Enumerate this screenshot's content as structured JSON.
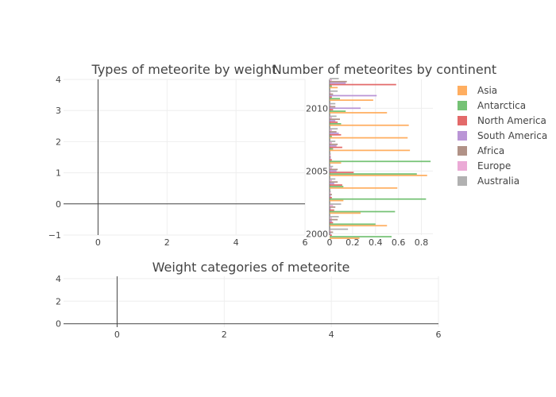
{
  "chart_data": [
    {
      "type": "scatter",
      "title": "Types of meteorite by weight",
      "xlim": [
        -1,
        6
      ],
      "ylim": [
        -1,
        4
      ],
      "x_ticks": [
        0,
        2,
        4,
        6
      ],
      "y_ticks": [
        -1,
        0,
        1,
        2,
        3,
        4
      ],
      "series": []
    },
    {
      "type": "bar",
      "orientation": "horizontal",
      "title": "Number of meteorites by continent",
      "xlim": [
        0,
        0.9
      ],
      "x_ticks": [
        0,
        0.2,
        0.4,
        0.6,
        0.8
      ],
      "x_tick_labels": [
        "0",
        "0.2",
        "0.4",
        "0.6",
        "0.8"
      ],
      "ylim": [
        1999.9,
        2012.3
      ],
      "y_ticks": [
        2000,
        2005,
        2010
      ],
      "legend_position": "right",
      "categories": [
        2000,
        2001,
        2002,
        2003,
        2004,
        2005,
        2006,
        2007,
        2008,
        2009,
        2010,
        2011,
        2012
      ],
      "series": [
        {
          "name": "Asia",
          "color": "#ffa54f",
          "values": [
            0.26,
            0.5,
            0.27,
            0.12,
            0.59,
            0.85,
            0.1,
            0.7,
            0.68,
            0.69,
            0.5,
            0.38,
            0.07
          ]
        },
        {
          "name": "Antarctica",
          "color": "#66bb66",
          "values": [
            0.54,
            0.4,
            0.57,
            0.84,
            0.12,
            0.76,
            0.88,
            0.03,
            0.02,
            0.1,
            0.14,
            0.09,
            0.02
          ]
        },
        {
          "name": "North America",
          "color": "#e05a5a",
          "values": [
            0.02,
            0.03,
            0.04,
            0.02,
            0.11,
            0.21,
            0.02,
            0.11,
            0.1,
            0.07,
            0.03,
            0.02,
            0.58
          ]
        },
        {
          "name": "South America",
          "color": "#b38ad1",
          "values": [
            0.01,
            0.02,
            0.01,
            0.01,
            0.04,
            0.06,
            0.01,
            0.06,
            0.08,
            0.05,
            0.27,
            0.41,
            0.14
          ]
        },
        {
          "name": "Africa",
          "color": "#a8867a",
          "values": [
            0.03,
            0.07,
            0.05,
            0.02,
            0.07,
            0.07,
            0.01,
            0.07,
            0.06,
            0.09,
            0.05,
            0.03,
            0.15
          ]
        },
        {
          "name": "Europe",
          "color": "#e9a1d1",
          "values": [
            0.01,
            0.02,
            0.03,
            0.01,
            0.02,
            0.02,
            0.01,
            0.02,
            0.02,
            0.02,
            0.01,
            0.01,
            0.02
          ]
        },
        {
          "name": "Australia",
          "color": "#a9a9a9",
          "values": [
            0.16,
            0.08,
            0.1,
            0.01,
            0.05,
            0.03,
            0.01,
            0.05,
            0.07,
            0.06,
            0.05,
            0.07,
            0.08
          ]
        }
      ]
    },
    {
      "type": "scatter",
      "title": "Weight categories of meteorite",
      "xlim": [
        -1,
        6
      ],
      "ylim": [
        -0.3,
        4.2
      ],
      "x_ticks": [
        0,
        2,
        4,
        6
      ],
      "y_ticks": [
        0,
        2,
        4
      ],
      "series": []
    }
  ]
}
